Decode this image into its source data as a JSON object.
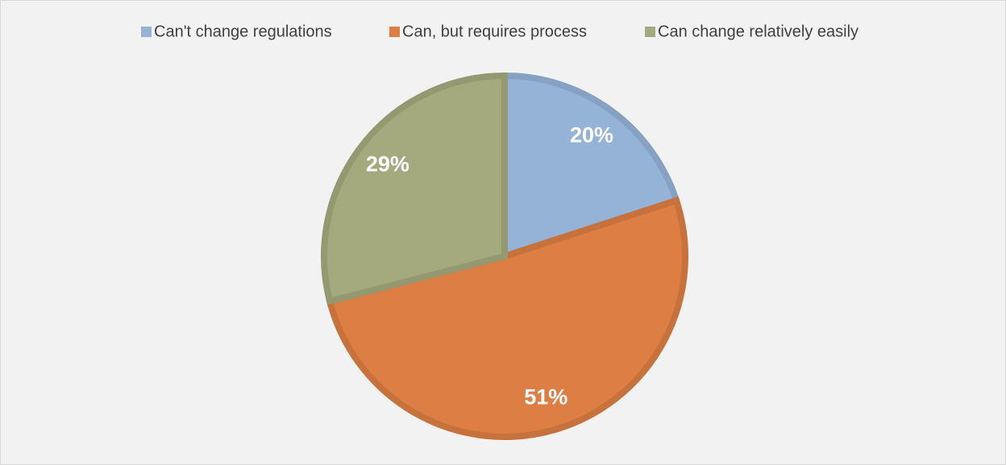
{
  "chart_data": {
    "type": "pie",
    "categories": [
      "Can't change regulations",
      "Can, but requires process",
      "Can change relatively easily"
    ],
    "values": [
      20,
      51,
      29
    ],
    "value_labels": [
      "20%",
      "51%",
      "29%"
    ],
    "colors": [
      "#95b3d7",
      "#dd7e44",
      "#a5aa7e"
    ],
    "legend": "top"
  }
}
